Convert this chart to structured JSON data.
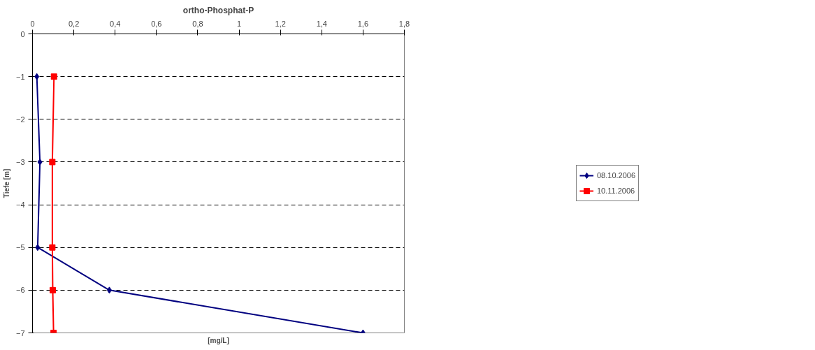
{
  "chart_data": {
    "type": "line",
    "title": "ortho-Phosphat-P",
    "xlabel": "[mg/L]",
    "ylabel": "Tiefe [m]",
    "xlim": [
      0,
      1.8
    ],
    "xticks": [
      0,
      {
        "value": 0.2,
        "label": "0,2"
      },
      {
        "value": 0.4,
        "label": "0,4"
      },
      {
        "value": 0.6,
        "label": "0,6"
      },
      {
        "value": 0.8,
        "label": "0,8"
      },
      1,
      {
        "value": 1.2,
        "label": "1,2"
      },
      {
        "value": 1.4,
        "label": "1,4"
      },
      {
        "value": 1.6,
        "label": "1,6"
      },
      {
        "value": 1.8,
        "label": "1,8"
      }
    ],
    "ylim": [
      -7,
      0
    ],
    "yticks": [
      0,
      -1,
      -2,
      -3,
      -4,
      -5,
      -6,
      -7
    ],
    "grid": "y",
    "legend": "right",
    "series": [
      {
        "name": "08.10.2006",
        "color": "#000080",
        "marker": "diamond",
        "x": [
          0.021,
          0.036,
          0.025,
          0.372,
          1.6
        ],
        "values": [
          -1,
          -3,
          -5,
          -6,
          -7
        ]
      },
      {
        "name": "10.11.2006",
        "color": "#ff0000",
        "marker": "square",
        "x": [
          0.104,
          0.096,
          0.096,
          0.098,
          0.102
        ],
        "values": [
          -1,
          -3,
          -5,
          -6,
          -7
        ]
      }
    ]
  }
}
